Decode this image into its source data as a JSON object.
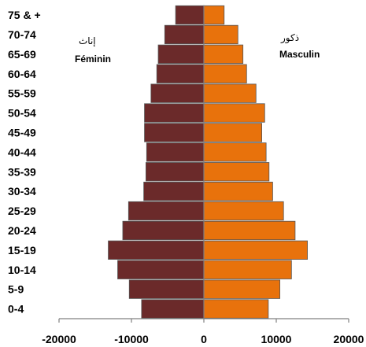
{
  "chart_data": {
    "type": "bar",
    "orientation": "horizontal",
    "stacked_pyramid": true,
    "categories": [
      "0-4",
      "5-9",
      "10-14",
      "15-19",
      "20-24",
      "25-29",
      "30-34",
      "35-39",
      "40-44",
      "45-49",
      "50-54",
      "55-59",
      "60-64",
      "65-69",
      "70-74",
      "75 & +"
    ],
    "series": [
      {
        "name": "Féminin",
        "name_ar": "إناث",
        "color": "#6b2a2a",
        "values": [
          -8600,
          -10300,
          -11900,
          -13200,
          -11200,
          -10400,
          -8300,
          -8000,
          -7900,
          -8200,
          -8200,
          -7300,
          -6500,
          -6300,
          -5400,
          -3900
        ]
      },
      {
        "name": "Masculin",
        "name_ar": "ذكور",
        "color": "#e8720c",
        "values": [
          8900,
          10500,
          12100,
          14300,
          12600,
          11000,
          9500,
          9000,
          8600,
          8000,
          8400,
          7200,
          5900,
          5400,
          4700,
          2800
        ]
      }
    ],
    "x_ticks": [
      "-20000",
      "-10000",
      "0",
      "10000",
      "20000"
    ],
    "xlim": [
      -20000,
      20000
    ],
    "grid": false,
    "legend": [
      {
        "series": "Féminin",
        "placement": "top-left"
      },
      {
        "series": "Masculin",
        "placement": "top-right"
      }
    ]
  }
}
